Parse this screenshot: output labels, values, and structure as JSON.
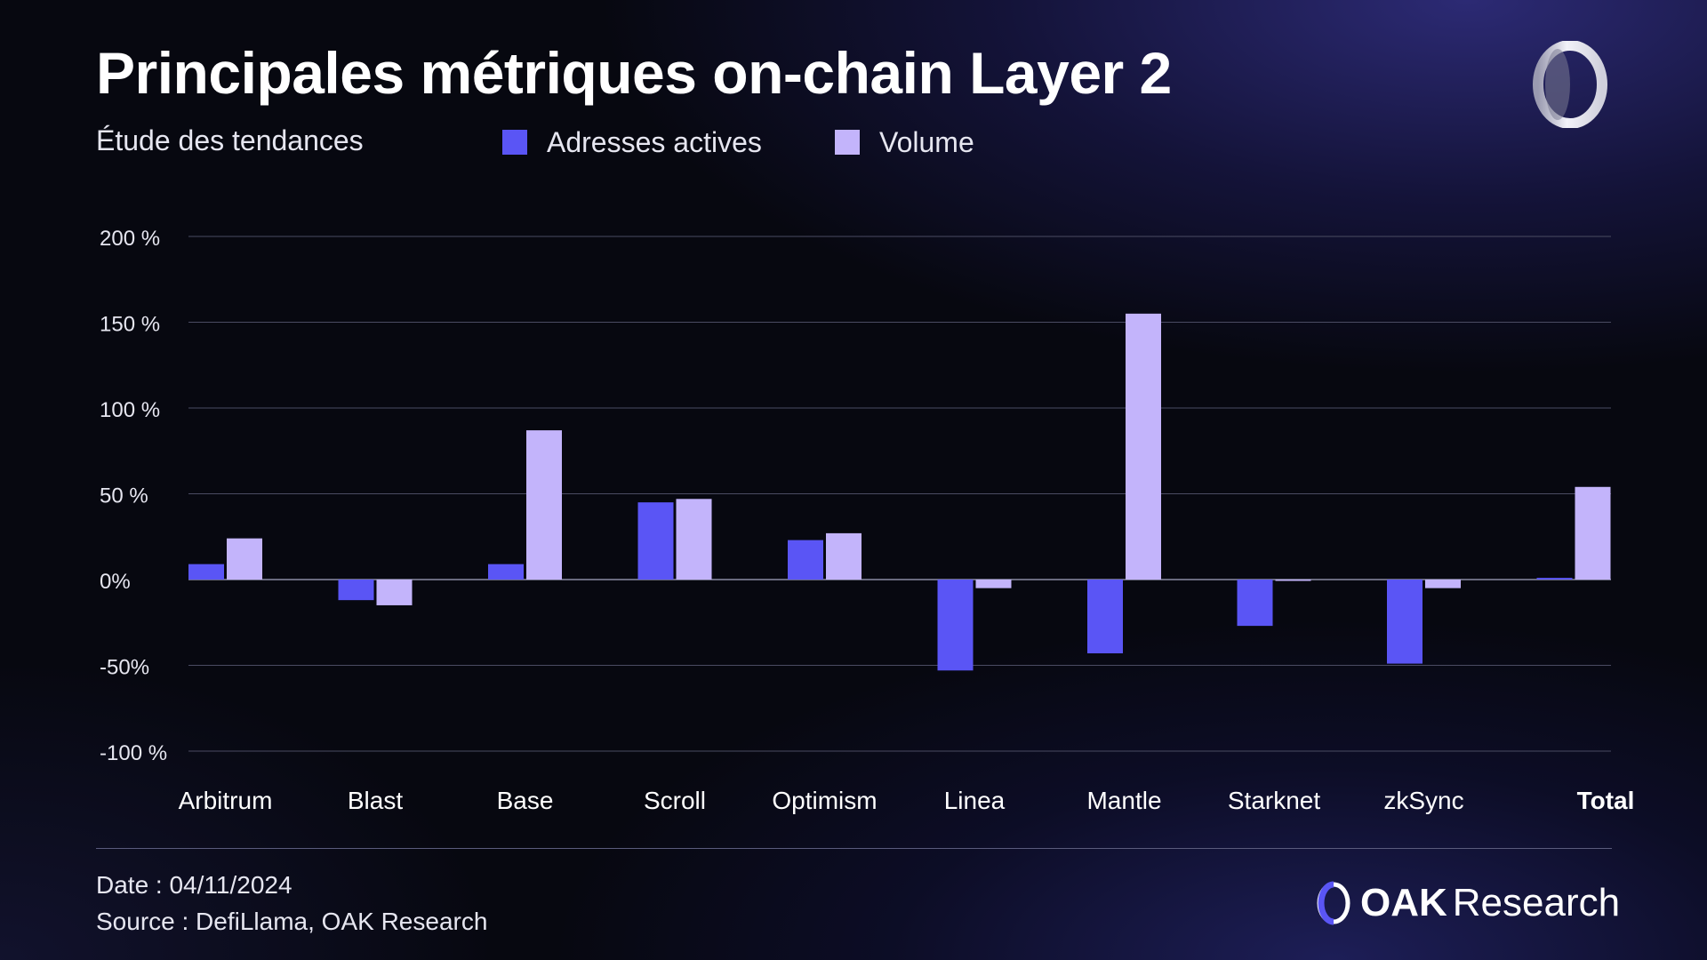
{
  "header": {
    "title": "Principales métriques on-chain Layer 2",
    "subtitle": "Étude des tendances"
  },
  "footer": {
    "date": "Date : 04/11/2024",
    "source": "Source : DefiLlama, OAK Research"
  },
  "brand": {
    "name_strong": "OAK",
    "name_light": "Research",
    "icon": "oak-ring-logo-icon"
  },
  "colors": {
    "active_addresses": "#5a55f5",
    "volume": "#c3b4fb",
    "gridline": "#4a4b62",
    "background": "#070810"
  },
  "chart_data": {
    "type": "bar",
    "title": "Principales métriques on-chain Layer 2",
    "subtitle": "Étude des tendances",
    "categories": [
      "Arbitrum",
      "Blast",
      "Base",
      "Scroll",
      "Optimism",
      "Linea",
      "Mantle",
      "Starknet",
      "zkSync",
      "Total"
    ],
    "emphasized_category": "Total",
    "series": [
      {
        "name": "Adresses actives",
        "color": "#5a55f5",
        "values": [
          9,
          -12,
          9,
          45,
          23,
          -53,
          -43,
          -27,
          -49,
          1
        ]
      },
      {
        "name": "Volume",
        "color": "#c3b4fb",
        "values": [
          24,
          -15,
          87,
          47,
          27,
          -5,
          155,
          0,
          -5,
          54
        ]
      }
    ],
    "y_ticks": [
      200,
      150,
      100,
      50,
      0,
      -50,
      -100
    ],
    "y_tick_labels": [
      "200 %",
      "150 %",
      "100 %",
      "50 %",
      "0%",
      "-50%",
      "-100 %"
    ],
    "ylim": [
      -100,
      200
    ],
    "grid": true,
    "legend_position": "top"
  }
}
